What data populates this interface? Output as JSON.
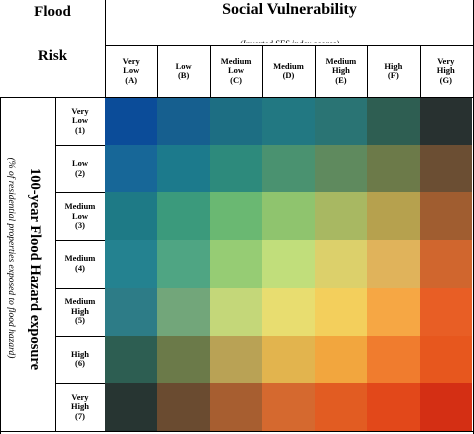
{
  "corner": {
    "top": "Flood",
    "bottom": "Risk"
  },
  "title": "Social Vulnerability",
  "subtitle": "(Inverted SES index scores)",
  "y_title": "100-year Flood Hazard exposure",
  "y_subtitle": "(% of residential properties exposed to flood hazard)",
  "chart_data": {
    "type": "heatmap",
    "title": "Social Vulnerability",
    "subtitle": "(Inverted SES index scores)",
    "ylabel": "100-year Flood Hazard exposure",
    "ylabel_sub": "(% of residential properties exposed to flood hazard)",
    "columns": [
      {
        "lines": [
          "Very",
          "Low",
          "(A)"
        ]
      },
      {
        "lines": [
          "Low",
          "(B)"
        ]
      },
      {
        "lines": [
          "Medium",
          "Low",
          "(C)"
        ]
      },
      {
        "lines": [
          "Medium",
          "(D)"
        ]
      },
      {
        "lines": [
          "Medium",
          "High",
          "(E)"
        ]
      },
      {
        "lines": [
          "High",
          "(F)"
        ]
      },
      {
        "lines": [
          "Very",
          "High",
          "(G)"
        ]
      }
    ],
    "rows": [
      {
        "lines": [
          "Very",
          "Low",
          "(1)"
        ]
      },
      {
        "lines": [
          "Low",
          "(2)"
        ]
      },
      {
        "lines": [
          "Medium",
          "Low",
          "(3)"
        ]
      },
      {
        "lines": [
          "Medium",
          "(4)"
        ]
      },
      {
        "lines": [
          "Medium",
          "High",
          "(5)"
        ]
      },
      {
        "lines": [
          "High",
          "(6)"
        ]
      },
      {
        "lines": [
          "Very",
          "High",
          "(7)"
        ]
      }
    ],
    "colors": [
      [
        "#0b4c99",
        "#165f8f",
        "#1d6e83",
        "#227882",
        "#2a7474",
        "#2e5e52",
        "#283130"
      ],
      [
        "#176798",
        "#1c7a8c",
        "#2d8a7c",
        "#4a9270",
        "#5f8a5e",
        "#6c7a49",
        "#6b4e33"
      ],
      [
        "#1e7a86",
        "#3b9a7c",
        "#6ab872",
        "#8fc46e",
        "#a8b862",
        "#b6a14e",
        "#a05d30"
      ],
      [
        "#248290",
        "#4fa583",
        "#96cc74",
        "#c1de7b",
        "#dcd06b",
        "#e0b35b",
        "#d0662e"
      ],
      [
        "#2d7c87",
        "#72a67a",
        "#c4d779",
        "#e8dd70",
        "#f3cf5c",
        "#f6a744",
        "#e85e25"
      ],
      [
        "#2d5e52",
        "#6b7a49",
        "#b9a255",
        "#e2b44e",
        "#f2a63e",
        "#f07c2e",
        "#e7571e"
      ],
      [
        "#273532",
        "#6a4b30",
        "#a75e30",
        "#d5692f",
        "#e25c22",
        "#e2481a",
        "#d42f14"
      ]
    ]
  }
}
